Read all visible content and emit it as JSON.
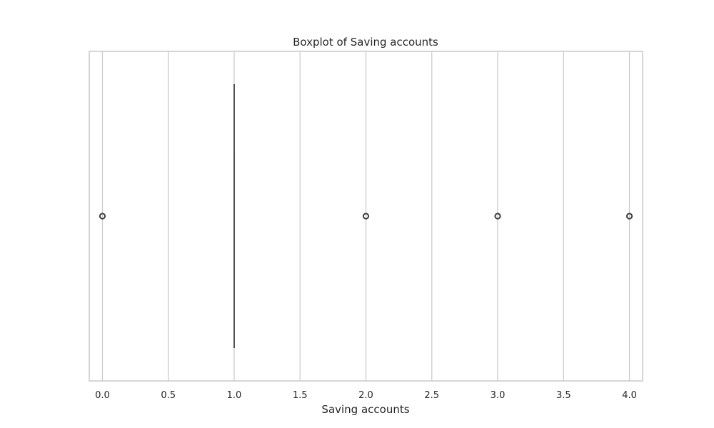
{
  "chart_data": {
    "type": "boxplot",
    "title": "Boxplot of Saving accounts",
    "xlabel": "Saving accounts",
    "ylabel": "",
    "orientation": "horizontal",
    "xlim": [
      -0.1,
      4.1
    ],
    "xticks": [
      0.0,
      0.5,
      1.0,
      1.5,
      2.0,
      2.5,
      3.0,
      3.5,
      4.0
    ],
    "xtick_labels": [
      "0.0",
      "0.5",
      "1.0",
      "1.5",
      "2.0",
      "2.5",
      "3.0",
      "3.5",
      "4.0"
    ],
    "grid": true,
    "box": {
      "min_whisker": 1.0,
      "q1": 1.0,
      "median": 1.0,
      "q3": 1.0,
      "max_whisker": 1.0
    },
    "outliers": [
      0.0,
      2.0,
      3.0,
      4.0
    ],
    "colors": {
      "grid": "#cccccc",
      "frame": "#cccccc",
      "box": "#4c4c4c",
      "outlier": "#3d3d3d",
      "text": "#262626"
    }
  }
}
